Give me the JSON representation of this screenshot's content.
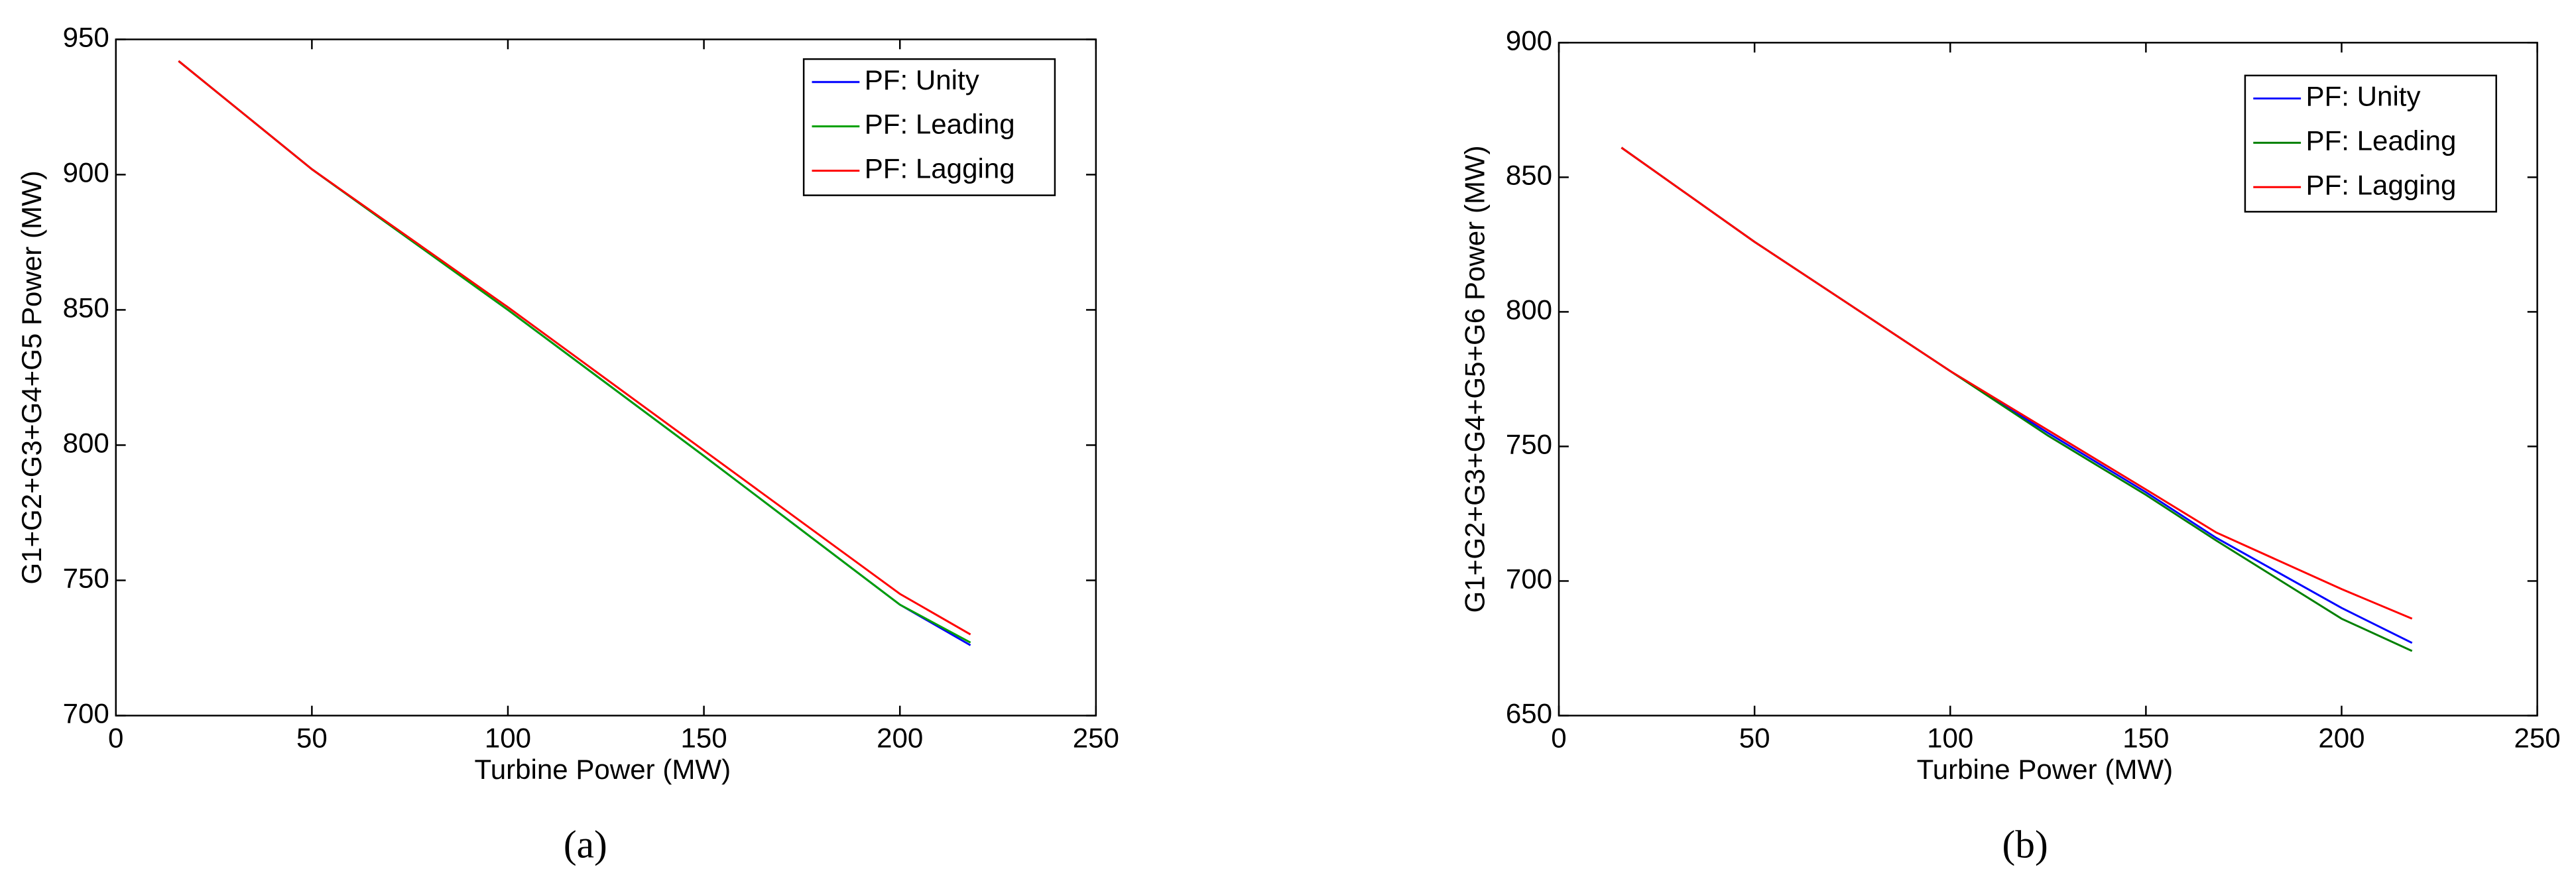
{
  "chart_data": [
    {
      "type": "line",
      "caption": "(a)",
      "xlabel": "Turbine Power (MW)",
      "ylabel": "G1+G2+G3+G4+G5 Power (MW)",
      "xlim": [
        0,
        250
      ],
      "xticks": [
        0,
        50,
        100,
        150,
        200,
        250
      ],
      "ylim": [
        700,
        950
      ],
      "yticks": [
        700,
        750,
        800,
        850,
        900,
        950
      ],
      "legend": "upper right",
      "grid": false,
      "x": [
        16,
        50,
        100,
        150,
        200,
        218
      ],
      "series": [
        {
          "name": "PF: Unity",
          "color": "#0000ff",
          "values": [
            942,
            902,
            850,
            796,
            741,
            726
          ]
        },
        {
          "name": "PF: Leading",
          "color": "#00a000",
          "values": [
            942,
            902,
            850,
            796,
            741,
            727
          ]
        },
        {
          "name": "PF: Lagging",
          "color": "#ff0000",
          "values": [
            942,
            902,
            851,
            798,
            745,
            730
          ]
        }
      ]
    },
    {
      "type": "line",
      "caption": "(b)",
      "xlabel": "Turbine Power (MW)",
      "ylabel": "G1+G2+G3+G4+G5+G6 Power (MW)",
      "xlim": [
        0,
        250
      ],
      "xticks": [
        0,
        50,
        100,
        150,
        200,
        250
      ],
      "ylim": [
        650,
        900
      ],
      "yticks": [
        650,
        700,
        750,
        800,
        850,
        900
      ],
      "legend": "upper right",
      "grid": false,
      "x": [
        16,
        50,
        100,
        125,
        150,
        168,
        200,
        218
      ],
      "series": [
        {
          "name": "PF: Unity",
          "color": "#0000ff",
          "values": [
            861,
            826,
            778,
            755,
            733,
            716,
            690,
            677
          ]
        },
        {
          "name": "PF: Leading",
          "color": "#008000",
          "values": [
            861,
            826,
            778,
            754,
            732,
            715,
            686,
            674
          ]
        },
        {
          "name": "PF: Lagging",
          "color": "#ff0000",
          "values": [
            861,
            826,
            778,
            756,
            734,
            718,
            697,
            686
          ]
        }
      ]
    }
  ]
}
